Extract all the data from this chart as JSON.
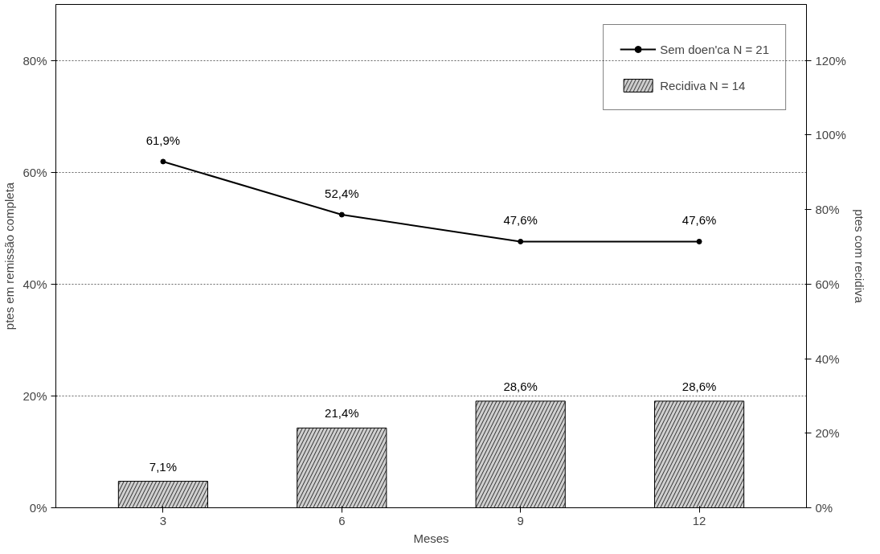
{
  "chart_data": {
    "type": "line",
    "categories": [
      "3",
      "6",
      "9",
      "12"
    ],
    "xlabel": "Meses",
    "ylabel": "ptes em remissão completa",
    "y2label": "ptes com recidiva",
    "ylim": [
      0,
      90
    ],
    "yticks": [
      {
        "value": 0,
        "label": "0%"
      },
      {
        "value": 20,
        "label": "20%"
      },
      {
        "value": 40,
        "label": "40%"
      },
      {
        "value": 60,
        "label": "60%"
      },
      {
        "value": 80,
        "label": "80%"
      }
    ],
    "y2lim": [
      0,
      135
    ],
    "y2ticks": [
      {
        "value": 0,
        "label": "0%"
      },
      {
        "value": 20,
        "label": "20%"
      },
      {
        "value": 40,
        "label": "40%"
      },
      {
        "value": 60,
        "label": "60%"
      },
      {
        "value": 80,
        "label": "80%"
      },
      {
        "value": 100,
        "label": "100%"
      },
      {
        "value": 120,
        "label": "120%"
      }
    ],
    "series": [
      {
        "name": "Sem doen'ca N = 21",
        "color": "#000000",
        "values": [
          61.9,
          52.4,
          47.6,
          47.6
        ],
        "value_labels": [
          "61,9%",
          "52,4%",
          "47,6%",
          "47,6%"
        ]
      },
      {
        "name": "Recidiva N = 14",
        "type": "bar",
        "axis": "y2",
        "color": "#d0d0d0",
        "values": [
          7.1,
          21.4,
          28.6,
          28.6
        ],
        "value_labels": [
          "7,1%",
          "21,4%",
          "28,6%",
          "28,6%"
        ]
      }
    ],
    "grid": "y",
    "legend": "top right",
    "marker": "circle",
    "line_style": "solid"
  }
}
